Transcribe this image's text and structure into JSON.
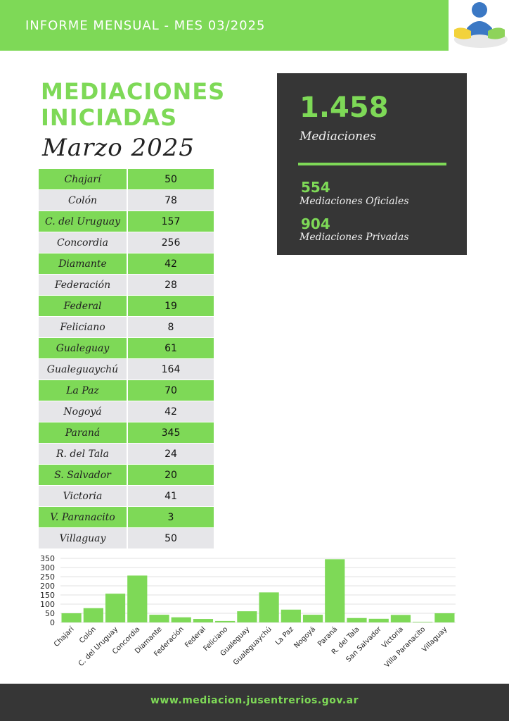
{
  "header": {
    "title": "INFORME MENSUAL - MES 03/2025"
  },
  "headline": {
    "line1": "MEDIACIONES",
    "line2": "INICIADAS",
    "month": "Marzo 2025"
  },
  "summary": {
    "total": "1.458",
    "total_label": "Mediaciones",
    "oficiales": "554",
    "oficiales_label": "Mediaciones Oficiales",
    "privadas": "904",
    "privadas_label": "Mediaciones Privadas"
  },
  "table": {
    "rows": [
      {
        "name": "Chajarí",
        "value": "50"
      },
      {
        "name": "Colón",
        "value": "78"
      },
      {
        "name": "C. del Uruguay",
        "value": "157"
      },
      {
        "name": "Concordia",
        "value": "256"
      },
      {
        "name": "Diamante",
        "value": "42"
      },
      {
        "name": "Federación",
        "value": "28"
      },
      {
        "name": "Federal",
        "value": "19"
      },
      {
        "name": "Feliciano",
        "value": "8"
      },
      {
        "name": "Gualeguay",
        "value": "61"
      },
      {
        "name": "Gualeguaychú",
        "value": "164"
      },
      {
        "name": "La Paz",
        "value": "70"
      },
      {
        "name": "Nogoyá",
        "value": "42"
      },
      {
        "name": "Paraná",
        "value": "345"
      },
      {
        "name": "R. del Tala",
        "value": "24"
      },
      {
        "name": "S. Salvador",
        "value": "20"
      },
      {
        "name": "Victoria",
        "value": "41"
      },
      {
        "name": "V. Paranacito",
        "value": "3"
      },
      {
        "name": "Villaguay",
        "value": "50"
      }
    ]
  },
  "chart_data": {
    "type": "bar",
    "categories": [
      "Chajarí",
      "Colón",
      "C. del Uruguay",
      "Concordia",
      "Diamante",
      "Federación",
      "Federal",
      "Feliciano",
      "Gualeguay",
      "Gualeguaychú",
      "La Paz",
      "Nogoyá",
      "Paraná",
      "R. del Tala",
      "San Salvador",
      "Victoria",
      "Villa Paranacito",
      "Villaguay"
    ],
    "values": [
      50,
      78,
      157,
      256,
      42,
      28,
      19,
      8,
      61,
      164,
      70,
      42,
      345,
      24,
      20,
      41,
      3,
      50
    ],
    "title": "",
    "xlabel": "",
    "ylabel": "",
    "ylim": [
      0,
      350
    ],
    "yticks": [
      0,
      50,
      100,
      150,
      200,
      250,
      300,
      350
    ],
    "grid": true,
    "bar_color": "#7ed957"
  },
  "footer": {
    "url": "www.mediacion.jusentrerios.gov.ar"
  },
  "colors": {
    "accent": "#7ed957",
    "dark": "#363636",
    "row_light": "#e6e6e9"
  }
}
